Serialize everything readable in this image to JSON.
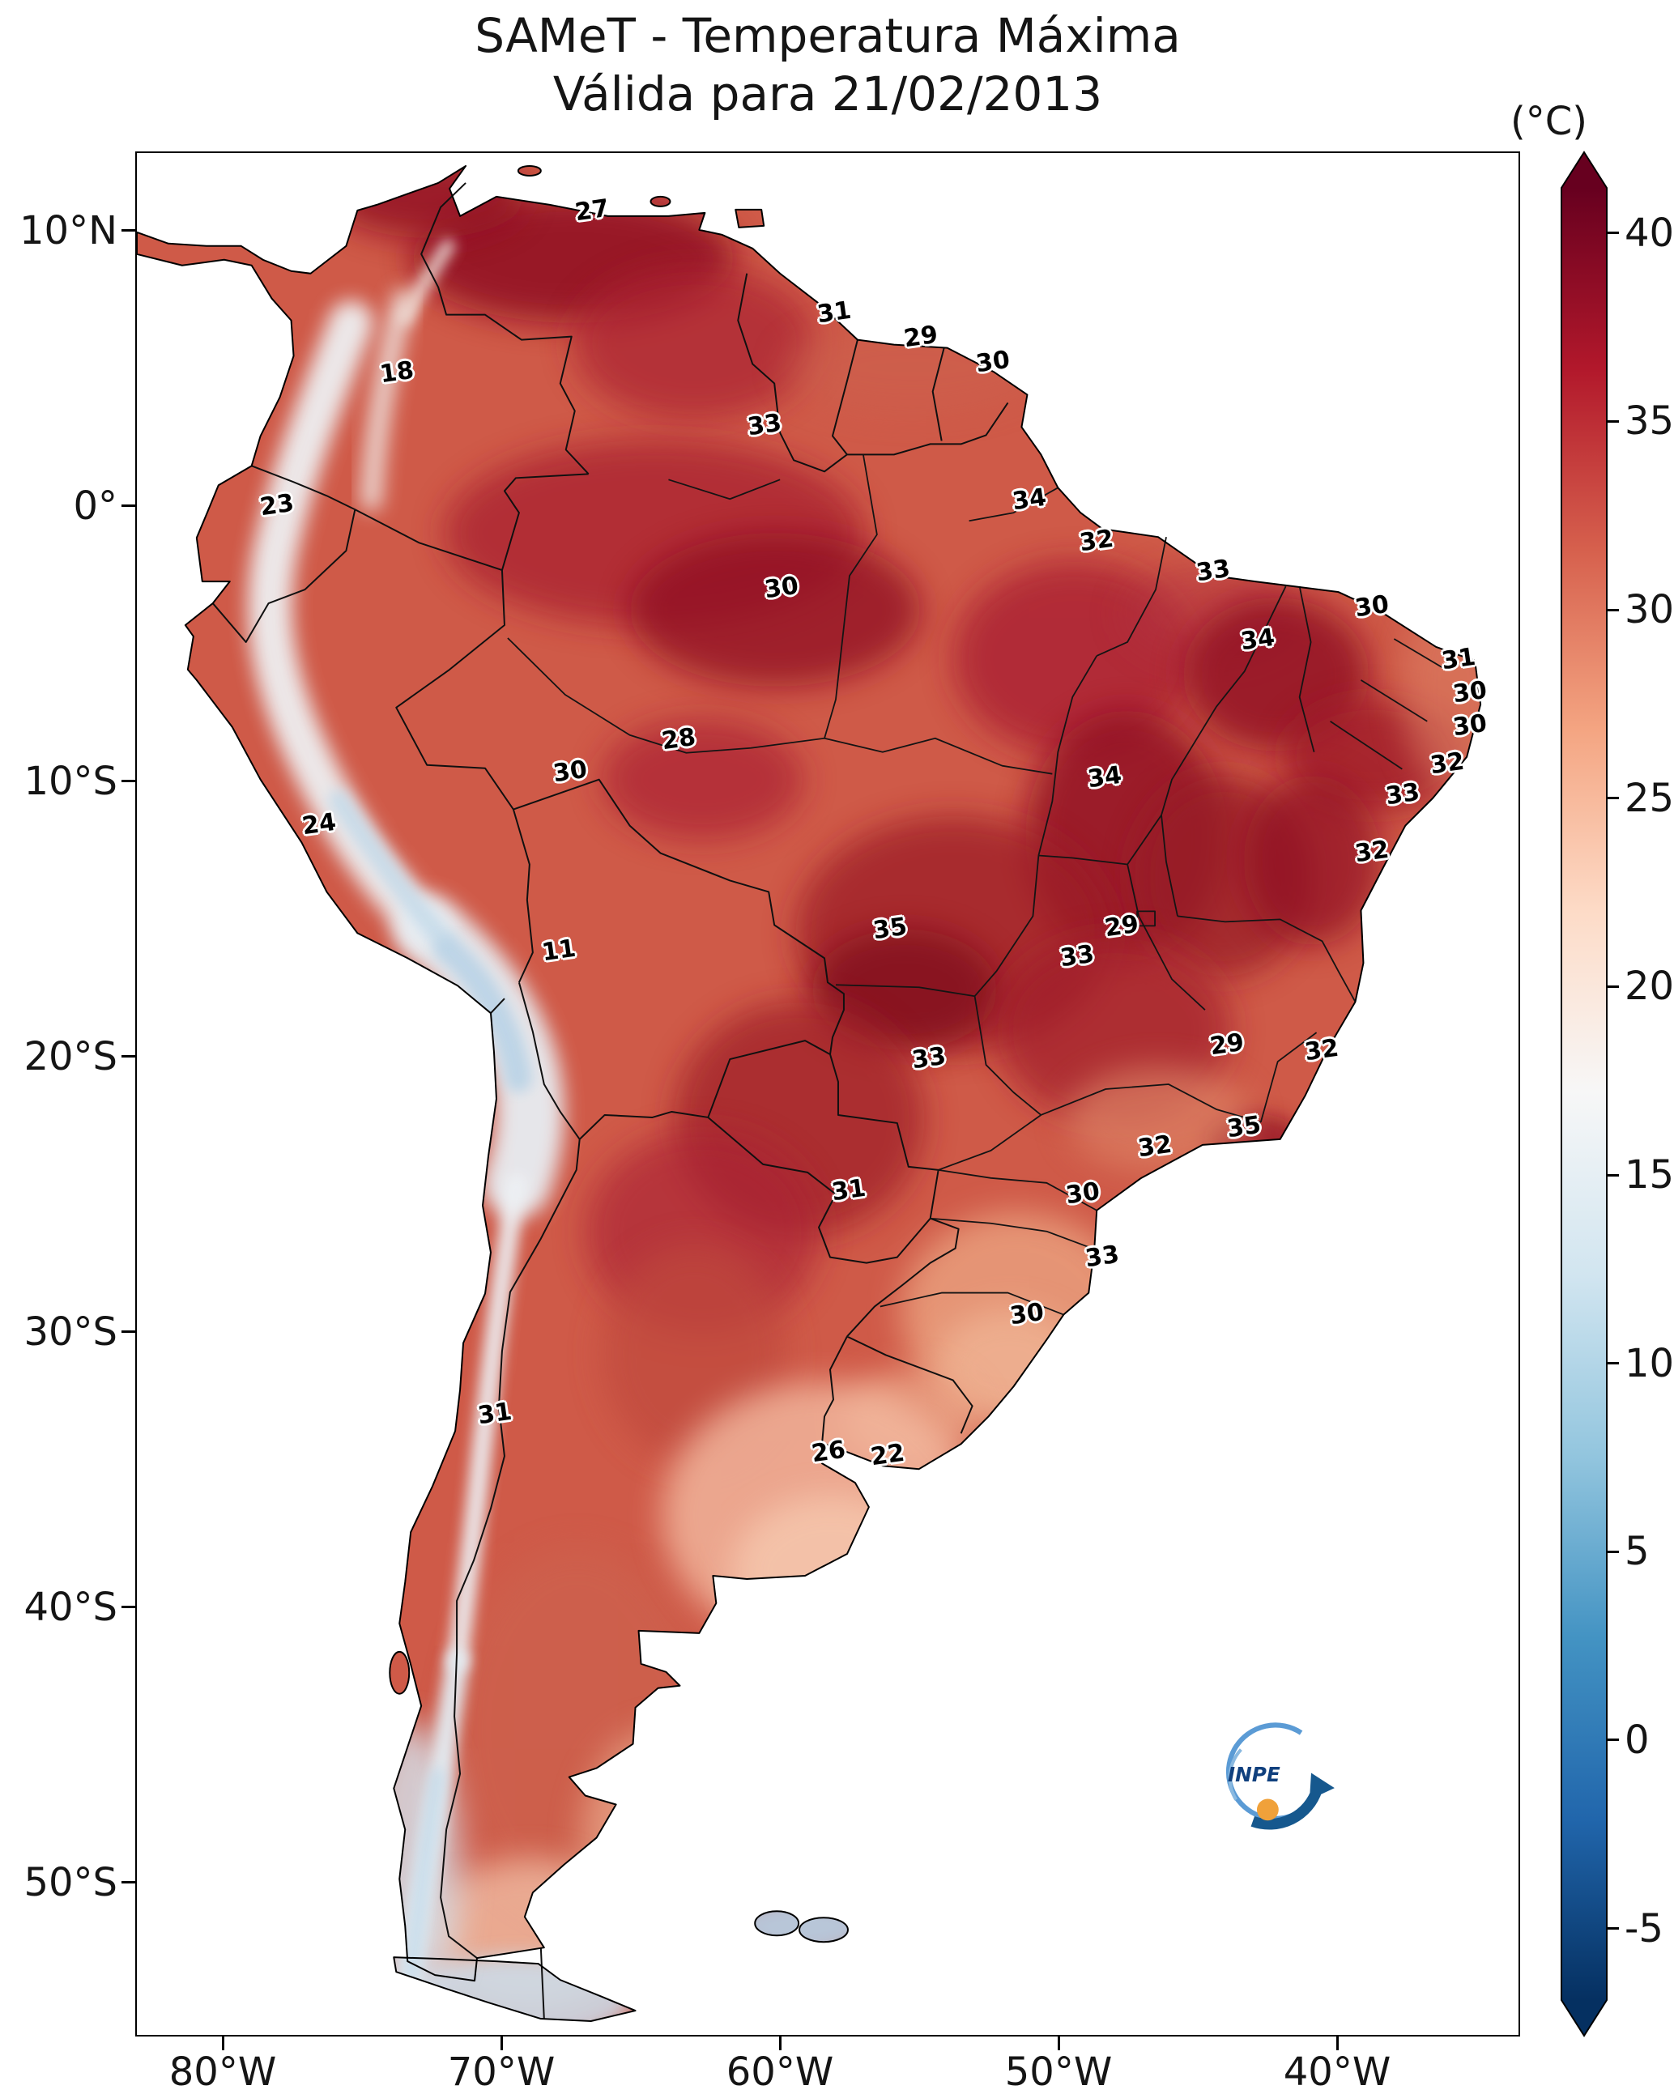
{
  "title": {
    "line1": "SAMeT - Temperatura Máxima",
    "line2": "Válida para 21/02/2013"
  },
  "logo": {
    "text": "INPE"
  },
  "colorbar": {
    "unit": "(°C)",
    "ticks": [
      {
        "label": "40",
        "value": 40
      },
      {
        "label": "35",
        "value": 35
      },
      {
        "label": "30",
        "value": 30
      },
      {
        "label": "25",
        "value": 25
      },
      {
        "label": "20",
        "value": 20
      },
      {
        "label": "15",
        "value": 15
      },
      {
        "label": "10",
        "value": 10
      },
      {
        "label": "5",
        "value": 5
      },
      {
        "label": "0",
        "value": 0
      },
      {
        "label": "-5",
        "value": -5
      }
    ],
    "stops": [
      {
        "v": 41.2,
        "color": "#67001f"
      },
      {
        "v": 36.4,
        "color": "#b2182b"
      },
      {
        "v": 31.6,
        "color": "#d6604d"
      },
      {
        "v": 26.8,
        "color": "#f4a582"
      },
      {
        "v": 22.0,
        "color": "#fddbc7"
      },
      {
        "v": 17.2,
        "color": "#f7f7f7"
      },
      {
        "v": 12.3,
        "color": "#d1e5f0"
      },
      {
        "v": 7.5,
        "color": "#92c5de"
      },
      {
        "v": 2.7,
        "color": "#4393c3"
      },
      {
        "v": -2.1,
        "color": "#2166ac"
      },
      {
        "v": -6.9,
        "color": "#053061"
      }
    ]
  },
  "axes": {
    "lat_ticks": [
      {
        "label": "10°N",
        "value": 10
      },
      {
        "label": "0°",
        "value": 0
      },
      {
        "label": "10°S",
        "value": -10
      },
      {
        "label": "20°S",
        "value": -20
      },
      {
        "label": "30°S",
        "value": -30
      },
      {
        "label": "40°S",
        "value": -40
      },
      {
        "label": "50°S",
        "value": -50
      }
    ],
    "lon_ticks": [
      {
        "label": "80°W",
        "value": -80
      },
      {
        "label": "70°W",
        "value": -70
      },
      {
        "label": "60°W",
        "value": -60
      },
      {
        "label": "50°W",
        "value": -50
      },
      {
        "label": "40°W",
        "value": -40
      }
    ]
  },
  "stations": [
    {
      "t": "27",
      "lon": -66.8,
      "lat": 10.8
    },
    {
      "t": "31",
      "lon": -58.1,
      "lat": 7.1
    },
    {
      "t": "29",
      "lon": -55.0,
      "lat": 6.2
    },
    {
      "t": "30",
      "lon": -52.4,
      "lat": 5.3
    },
    {
      "t": "18",
      "lon": -73.8,
      "lat": 4.9
    },
    {
      "t": "33",
      "lon": -60.6,
      "lat": 3.0
    },
    {
      "t": "34",
      "lon": -51.1,
      "lat": 0.3
    },
    {
      "t": "23",
      "lon": -78.1,
      "lat": 0.1
    },
    {
      "t": "32",
      "lon": -48.7,
      "lat": -1.2
    },
    {
      "t": "33",
      "lon": -44.5,
      "lat": -2.3
    },
    {
      "t": "30",
      "lon": -60.0,
      "lat": -2.9
    },
    {
      "t": "30",
      "lon": -38.8,
      "lat": -3.6
    },
    {
      "t": "34",
      "lon": -42.9,
      "lat": -4.8
    },
    {
      "t": "31",
      "lon": -35.7,
      "lat": -5.5
    },
    {
      "t": "30",
      "lon": -35.3,
      "lat": -6.7
    },
    {
      "t": "30",
      "lon": -35.3,
      "lat": -7.9
    },
    {
      "t": "28",
      "lon": -63.7,
      "lat": -8.4
    },
    {
      "t": "32",
      "lon": -36.1,
      "lat": -9.3
    },
    {
      "t": "30",
      "lon": -67.6,
      "lat": -9.6
    },
    {
      "t": "34",
      "lon": -48.4,
      "lat": -9.8
    },
    {
      "t": "33",
      "lon": -37.7,
      "lat": -10.4
    },
    {
      "t": "24",
      "lon": -76.6,
      "lat": -11.5
    },
    {
      "t": "32",
      "lon": -38.8,
      "lat": -12.5
    },
    {
      "t": "35",
      "lon": -56.1,
      "lat": -15.3
    },
    {
      "t": "29",
      "lon": -47.8,
      "lat": -15.2
    },
    {
      "t": "33",
      "lon": -49.4,
      "lat": -16.3
    },
    {
      "t": "11",
      "lon": -68.0,
      "lat": -16.1
    },
    {
      "t": "29",
      "lon": -44.0,
      "lat": -19.5
    },
    {
      "t": "32",
      "lon": -40.6,
      "lat": -19.7
    },
    {
      "t": "33",
      "lon": -54.7,
      "lat": -20.0
    },
    {
      "t": "35",
      "lon": -43.4,
      "lat": -22.5
    },
    {
      "t": "32",
      "lon": -46.6,
      "lat": -23.2
    },
    {
      "t": "31",
      "lon": -57.6,
      "lat": -24.8
    },
    {
      "t": "30",
      "lon": -49.2,
      "lat": -24.9
    },
    {
      "t": "33",
      "lon": -48.5,
      "lat": -27.2
    },
    {
      "t": "30",
      "lon": -51.2,
      "lat": -29.3
    },
    {
      "t": "31",
      "lon": -70.3,
      "lat": -32.9
    },
    {
      "t": "26",
      "lon": -58.3,
      "lat": -34.3
    },
    {
      "t": "22",
      "lon": -56.2,
      "lat": -34.4
    }
  ]
}
